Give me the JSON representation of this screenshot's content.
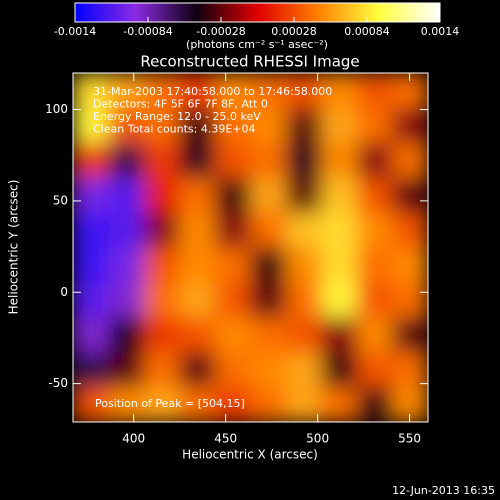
{
  "chart_data": {
    "type": "heatmap",
    "title": "Reconstructed RHESSI Image",
    "xlabel": "Heliocentric X (arcsec)",
    "ylabel": "Heliocentric Y (arcsec)",
    "colorbar_label": "(photons cm⁻² s⁻¹ asec⁻²)",
    "colorscale": [
      "#0000ff",
      "#8a2be2",
      "#100010",
      "#e00000",
      "#ff8000",
      "#ffff40",
      "#ffffff"
    ],
    "zlim": [
      -0.0014,
      0.0014
    ],
    "zticks": [
      -0.0014,
      -0.00084,
      -0.00028,
      0.00028,
      0.00084,
      0.0014
    ],
    "xlim": [
      367,
      560
    ],
    "xticks": [
      400,
      450,
      500,
      550
    ],
    "ylim": [
      -71,
      120
    ],
    "yticks": [
      -50,
      0,
      50,
      100
    ],
    "annotations": [
      "31-Mar-2003 17:40:58.000 to 17:46:58.000",
      "Detectors: 4F 5F 6F 7F 8F, Att 0",
      "Energy Range: 12.0 - 25.0 keV",
      "Clean    Total counts: 4.39E+04"
    ],
    "peak_label": "Position of Peak = [504,15]",
    "footer": "12-Jun-2013 16:35",
    "z": [
      [
        0.0008,
        0.0006,
        0.0004,
        0.0002,
        0.0005,
        0.0004,
        0.0003,
        0.0005,
        0.0003,
        0.0004
      ],
      [
        0.0009,
        0.0003,
        0.0004,
        -0.0004,
        0.0004,
        0.0005,
        -0.0003,
        0.0006,
        0.0004,
        -0.0002
      ],
      [
        0.0002,
        -0.0006,
        0.0002,
        -0.0005,
        0.0003,
        0.0004,
        -0.0005,
        0.0005,
        -0.0002,
        0.0004
      ],
      [
        -0.001,
        -0.0011,
        0.0001,
        0.0004,
        -0.0004,
        0.0006,
        -0.0003,
        0.0007,
        0.0003,
        -0.0003
      ],
      [
        -0.0012,
        -0.0011,
        -0.0002,
        0.0005,
        -0.0002,
        0.0004,
        0.0007,
        0.0008,
        0.0005,
        0.0003
      ],
      [
        -0.0012,
        -0.001,
        0.0003,
        0.0005,
        0.0004,
        -0.0004,
        0.0005,
        0.0008,
        0.0004,
        0.0005
      ],
      [
        -0.0011,
        -0.0009,
        0.0004,
        0.0006,
        0.0003,
        -0.0003,
        0.0004,
        0.0009,
        0.0003,
        0.0004
      ],
      [
        -0.0009,
        -0.0005,
        0.0002,
        0.0003,
        0.0005,
        0.0004,
        0.0003,
        -0.0002,
        0.0005,
        -0.0003
      ],
      [
        -0.0006,
        -0.0003,
        0.0004,
        -0.0003,
        0.0004,
        0.0005,
        0.0006,
        -0.0004,
        0.0003,
        0.0004
      ],
      [
        0.0003,
        0.0005,
        0.0006,
        0.0004,
        0.0002,
        0.0004,
        0.0006,
        0.0004,
        -0.0004,
        0.0005
      ]
    ]
  }
}
